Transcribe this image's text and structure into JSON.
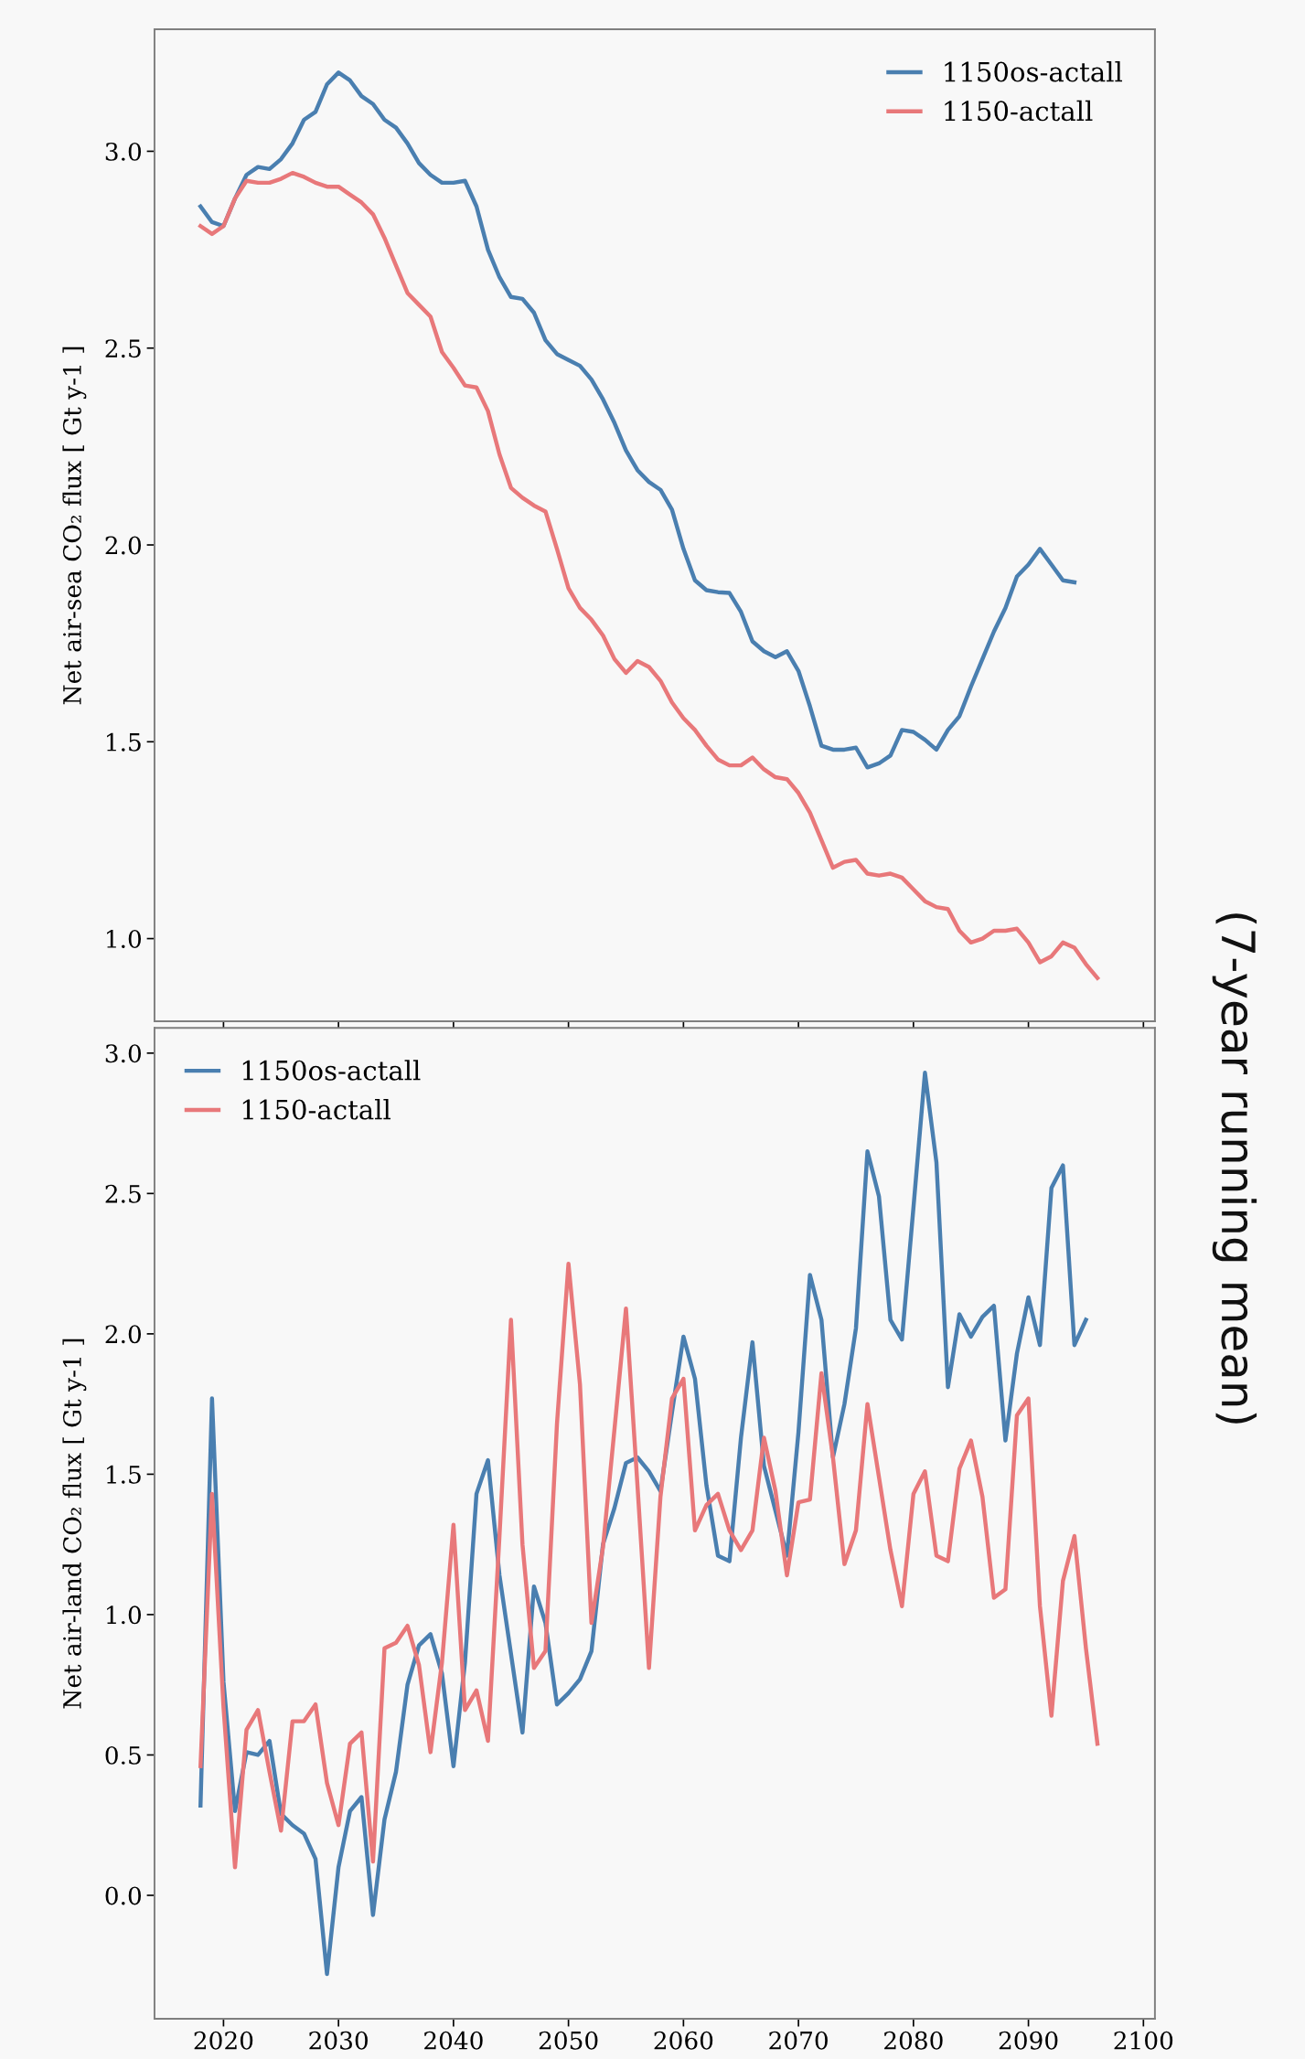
{
  "chart_data": [
    {
      "type": "line",
      "ylabel": "Net air-sea CO₂ flux [ Gt y-1 ]",
      "xlim": [
        2014,
        2101
      ],
      "xticks": [
        2020,
        2030,
        2040,
        2050,
        2060,
        2070,
        2080,
        2090,
        2100
      ],
      "ylim": [
        0.79,
        3.31
      ],
      "yticks": [
        {
          "value": 1,
          "label": "1.0"
        },
        1.5,
        {
          "value": 2,
          "label": "2.0"
        },
        2.5,
        {
          "value": 3,
          "label": "3.0"
        }
      ],
      "tick_labels": "y",
      "legend": "top right",
      "grid": false,
      "annotations": [
        "(7-year running mean)"
      ],
      "series": [
        {
          "name": "1150os-actall",
          "color": "#4a7fb0",
          "x": [
            2018,
            2019,
            2020,
            2021,
            2022,
            2023,
            2024,
            2025,
            2026,
            2027,
            2028,
            2029,
            2030,
            2031,
            2032,
            2033,
            2034,
            2035,
            2036,
            2037,
            2038,
            2039,
            2040,
            2041,
            2042,
            2043,
            2044,
            2045,
            2046,
            2047,
            2048,
            2049,
            2050,
            2051,
            2052,
            2053,
            2054,
            2055,
            2056,
            2057,
            2058,
            2059,
            2060,
            2061,
            2062,
            2063,
            2064,
            2065,
            2066,
            2067,
            2068,
            2069,
            2070,
            2071,
            2072,
            2073,
            2074,
            2075,
            2076,
            2077,
            2078,
            2079,
            2080,
            2081,
            2082,
            2083,
            2084,
            2085,
            2086,
            2087,
            2088,
            2089,
            2090,
            2091,
            2092,
            2093,
            2094
          ],
          "values": [
            2.86,
            2.82,
            2.81,
            2.88,
            2.94,
            2.96,
            2.955,
            2.98,
            3.02,
            3.08,
            3.1,
            3.17,
            3.2,
            3.18,
            3.14,
            3.12,
            3.08,
            3.06,
            3.02,
            2.97,
            2.94,
            2.92,
            2.92,
            2.925,
            2.86,
            2.75,
            2.68,
            2.63,
            2.625,
            2.59,
            2.52,
            2.485,
            2.47,
            2.455,
            2.42,
            2.37,
            2.31,
            2.24,
            2.19,
            2.16,
            2.14,
            2.09,
            1.99,
            1.91,
            1.885,
            1.88,
            1.878,
            1.83,
            1.755,
            1.73,
            1.715,
            1.73,
            1.68,
            1.59,
            1.49,
            1.48,
            1.48,
            1.485,
            1.435,
            1.445,
            1.465,
            1.53,
            1.525,
            1.505,
            1.48,
            1.53,
            1.565,
            1.64,
            1.71,
            1.78,
            1.84,
            1.92,
            1.95,
            1.99,
            1.95,
            1.91,
            1.905
          ]
        },
        {
          "name": "1150-actall",
          "color": "#e8787a",
          "x": [
            2018,
            2019,
            2020,
            2021,
            2022,
            2023,
            2024,
            2025,
            2026,
            2027,
            2028,
            2029,
            2030,
            2031,
            2032,
            2033,
            2034,
            2035,
            2036,
            2037,
            2038,
            2039,
            2040,
            2041,
            2042,
            2043,
            2044,
            2045,
            2046,
            2047,
            2048,
            2049,
            2050,
            2051,
            2052,
            2053,
            2054,
            2055,
            2056,
            2057,
            2058,
            2059,
            2060,
            2061,
            2062,
            2063,
            2064,
            2065,
            2066,
            2067,
            2068,
            2069,
            2070,
            2071,
            2072,
            2073,
            2074,
            2075,
            2076,
            2077,
            2078,
            2079,
            2080,
            2081,
            2082,
            2083,
            2084,
            2085,
            2086,
            2087,
            2088,
            2089,
            2090,
            2091,
            2092,
            2093,
            2094,
            2095,
            2096
          ],
          "values": [
            2.81,
            2.79,
            2.81,
            2.88,
            2.925,
            2.92,
            2.92,
            2.93,
            2.945,
            2.935,
            2.92,
            2.91,
            2.91,
            2.89,
            2.87,
            2.84,
            2.78,
            2.71,
            2.64,
            2.61,
            2.58,
            2.49,
            2.45,
            2.405,
            2.4,
            2.34,
            2.23,
            2.145,
            2.12,
            2.1,
            2.085,
            1.99,
            1.89,
            1.84,
            1.81,
            1.77,
            1.71,
            1.675,
            1.705,
            1.69,
            1.655,
            1.6,
            1.56,
            1.53,
            1.49,
            1.455,
            1.44,
            1.44,
            1.46,
            1.43,
            1.41,
            1.405,
            1.37,
            1.32,
            1.25,
            1.18,
            1.195,
            1.2,
            1.165,
            1.16,
            1.165,
            1.155,
            1.125,
            1.095,
            1.08,
            1.075,
            1.02,
            0.99,
            1.0,
            1.02,
            1.02,
            1.025,
            0.99,
            0.94,
            0.955,
            0.99,
            0.977,
            0.935,
            0.9
          ]
        }
      ]
    },
    {
      "type": "line",
      "ylabel": "Net air-land CO₂ flux [ Gt y-1 ]",
      "xlim": [
        2014,
        2101
      ],
      "xticks": [
        2020,
        2030,
        2040,
        2050,
        2060,
        2070,
        2080,
        2090,
        2100
      ],
      "ylim": [
        -0.44,
        3.09
      ],
      "yticks": [
        {
          "value": 0,
          "label": "0.0"
        },
        0.5,
        {
          "value": 1,
          "label": "1.0"
        },
        1.5,
        {
          "value": 2,
          "label": "2.0"
        },
        2.5,
        {
          "value": 3,
          "label": "3.0"
        }
      ],
      "legend": "top left",
      "grid": false,
      "series": [
        {
          "name": "1150os-actall",
          "color": "#4a7fb0",
          "x": [
            2018,
            2019,
            2020,
            2021,
            2022,
            2023,
            2024,
            2025,
            2026,
            2027,
            2028,
            2029,
            2030,
            2031,
            2032,
            2033,
            2034,
            2035,
            2036,
            2037,
            2038,
            2039,
            2040,
            2041,
            2042,
            2043,
            2044,
            2045,
            2046,
            2047,
            2048,
            2049,
            2050,
            2051,
            2052,
            2053,
            2054,
            2055,
            2056,
            2057,
            2058,
            2059,
            2060,
            2061,
            2062,
            2063,
            2064,
            2065,
            2066,
            2067,
            2068,
            2069,
            2070,
            2071,
            2072,
            2073,
            2074,
            2075,
            2076,
            2077,
            2078,
            2079,
            2080,
            2081,
            2082,
            2083,
            2084,
            2085,
            2086,
            2087,
            2088,
            2089,
            2090,
            2091,
            2092,
            2093,
            2094,
            2095
          ],
          "values": [
            0.32,
            1.77,
            0.76,
            0.3,
            0.51,
            0.5,
            0.55,
            0.29,
            0.25,
            0.22,
            0.13,
            -0.28,
            0.1,
            0.3,
            0.35,
            -0.07,
            0.27,
            0.44,
            0.75,
            0.89,
            0.93,
            0.79,
            0.46,
            0.83,
            1.43,
            1.55,
            1.14,
            0.86,
            0.58,
            1.1,
            0.97,
            0.68,
            0.72,
            0.77,
            0.87,
            1.25,
            1.38,
            1.54,
            1.56,
            1.51,
            1.44,
            1.72,
            1.99,
            1.84,
            1.46,
            1.21,
            1.19,
            1.63,
            1.97,
            1.53,
            1.37,
            1.21,
            1.65,
            2.21,
            2.05,
            1.56,
            1.75,
            2.02,
            2.65,
            2.49,
            2.05,
            1.98,
            2.45,
            2.93,
            2.61,
            1.81,
            2.07,
            1.99,
            2.06,
            2.1,
            1.62,
            1.93,
            2.13,
            1.96,
            2.52,
            2.6,
            1.96,
            2.05
          ]
        },
        {
          "name": "1150-actall",
          "color": "#e8787a",
          "x": [
            2018,
            2019,
            2020,
            2021,
            2022,
            2023,
            2024,
            2025,
            2026,
            2027,
            2028,
            2029,
            2030,
            2031,
            2032,
            2033,
            2034,
            2035,
            2036,
            2037,
            2038,
            2039,
            2040,
            2041,
            2042,
            2043,
            2044,
            2045,
            2046,
            2047,
            2048,
            2049,
            2050,
            2051,
            2052,
            2053,
            2054,
            2055,
            2056,
            2057,
            2058,
            2059,
            2060,
            2061,
            2062,
            2063,
            2064,
            2065,
            2066,
            2067,
            2068,
            2069,
            2070,
            2071,
            2072,
            2073,
            2074,
            2075,
            2076,
            2077,
            2078,
            2079,
            2080,
            2081,
            2082,
            2083,
            2084,
            2085,
            2086,
            2087,
            2088,
            2089,
            2090,
            2091,
            2092,
            2093,
            2094,
            2095,
            2096
          ],
          "values": [
            0.46,
            1.43,
            0.67,
            0.1,
            0.59,
            0.66,
            0.44,
            0.23,
            0.62,
            0.62,
            0.68,
            0.4,
            0.25,
            0.54,
            0.58,
            0.12,
            0.88,
            0.9,
            0.96,
            0.82,
            0.51,
            0.83,
            1.32,
            0.66,
            0.73,
            0.55,
            1.28,
            2.05,
            1.25,
            0.81,
            0.87,
            1.68,
            2.25,
            1.82,
            0.97,
            1.24,
            1.66,
            2.09,
            1.46,
            0.81,
            1.42,
            1.77,
            1.84,
            1.3,
            1.39,
            1.43,
            1.3,
            1.23,
            1.3,
            1.63,
            1.44,
            1.14,
            1.4,
            1.41,
            1.86,
            1.56,
            1.18,
            1.3,
            1.75,
            1.49,
            1.23,
            1.03,
            1.43,
            1.51,
            1.21,
            1.19,
            1.52,
            1.62,
            1.42,
            1.06,
            1.09,
            1.71,
            1.77,
            1.03,
            0.64,
            1.12,
            1.28,
            0.88,
            0.54
          ]
        }
      ]
    }
  ]
}
